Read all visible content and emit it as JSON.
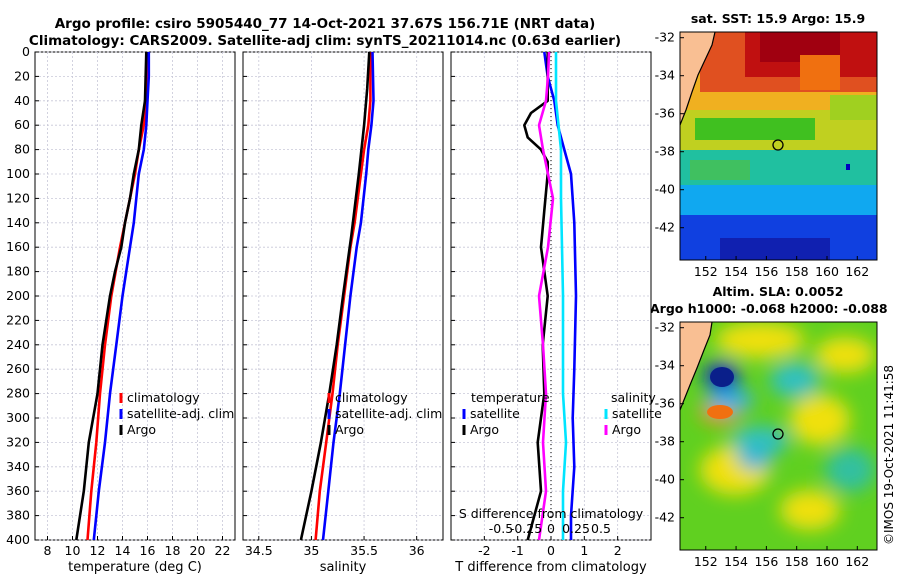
{
  "header": {
    "title_line1": "Argo profile: csiro 5905440_77 14-Oct-2021 37.67S 156.71E (NRT data)",
    "title_line2": "Climatology: CARS2009. Satellite-adj clim: synTS_20211014.nc (0.63d earlier)"
  },
  "copyright": "©IMOS 19-Oct-2021 11:41:58",
  "colors": {
    "climatology": "#ff0000",
    "satellite": "#0000ff",
    "argo": "#000000",
    "salinity_sat": "#00e5ff",
    "salinity_argo": "#ff00ff",
    "land": "#f9bf93"
  },
  "chart_data": [
    {
      "type": "line",
      "name": "temperature-profile",
      "xlabel": "temperature (deg C)",
      "ylabel": "",
      "xlim": [
        7,
        23
      ],
      "ylim": [
        400,
        0
      ],
      "xticks": [
        "8",
        "10",
        "12",
        "14",
        "16",
        "18",
        "20",
        "22"
      ],
      "xtick_values": [
        8,
        10,
        12,
        14,
        16,
        18,
        20,
        22
      ],
      "yticks": [
        "0",
        "20",
        "40",
        "60",
        "80",
        "100",
        "120",
        "140",
        "160",
        "180",
        "200",
        "220",
        "240",
        "260",
        "280",
        "300",
        "320",
        "340",
        "360",
        "380",
        "400"
      ],
      "ytick_values": [
        0,
        20,
        40,
        60,
        80,
        100,
        120,
        140,
        160,
        180,
        200,
        220,
        240,
        260,
        280,
        300,
        320,
        340,
        360,
        380,
        400
      ],
      "legend": {
        "labels": [
          "climatology",
          "satellite-adj. clim",
          "Argo"
        ],
        "position": "lower-right"
      },
      "series": [
        {
          "name": "climatology",
          "color": "#ff0000",
          "depth": [
            0,
            40,
            60,
            80,
            100,
            140,
            160,
            200,
            240,
            280,
            320,
            360,
            400
          ],
          "values": [
            15.9,
            15.9,
            15.7,
            15.3,
            15.0,
            14.2,
            13.8,
            13.1,
            12.6,
            12.2,
            11.9,
            11.5,
            11.2
          ]
        },
        {
          "name": "satellite-adj. clim",
          "color": "#0000ff",
          "depth": [
            0,
            20,
            40,
            60,
            80,
            100,
            140,
            160,
            200,
            240,
            280,
            320,
            360,
            400
          ],
          "values": [
            16.1,
            16.1,
            16.0,
            15.9,
            15.7,
            15.3,
            14.9,
            14.6,
            14.0,
            13.5,
            13.0,
            12.6,
            12.1,
            11.7
          ]
        },
        {
          "name": "Argo",
          "color": "#000000",
          "depth": [
            0,
            40,
            60,
            80,
            100,
            120,
            140,
            160,
            180,
            200,
            240,
            280,
            320,
            360,
            400
          ],
          "values": [
            15.9,
            15.8,
            15.5,
            15.3,
            14.9,
            14.6,
            14.2,
            13.9,
            13.4,
            13.0,
            12.4,
            12.0,
            11.3,
            10.9,
            10.3
          ]
        }
      ]
    },
    {
      "type": "line",
      "name": "salinity-profile",
      "xlabel": "salinity",
      "xlim": [
        34.35,
        36.25
      ],
      "ylim": [
        400,
        0
      ],
      "xticks": [
        "34.5",
        "35",
        "35.5",
        "36"
      ],
      "xtick_values": [
        34.5,
        35,
        35.5,
        36
      ],
      "legend": {
        "labels": [
          "climatology",
          "satellite-adj. clim",
          "Argo"
        ],
        "position": "lower-right"
      },
      "series": [
        {
          "name": "climatology",
          "color": "#ff0000",
          "depth": [
            0,
            40,
            60,
            80,
            100,
            140,
            160,
            200,
            240,
            280,
            320,
            360,
            400
          ],
          "values": [
            35.56,
            35.56,
            35.54,
            35.5,
            35.47,
            35.41,
            35.37,
            35.31,
            35.25,
            35.2,
            35.14,
            35.08,
            35.04
          ]
        },
        {
          "name": "satellite-adj. clim",
          "color": "#0000ff",
          "depth": [
            0,
            40,
            60,
            80,
            100,
            140,
            160,
            200,
            240,
            280,
            320,
            360,
            400
          ],
          "values": [
            35.58,
            35.59,
            35.57,
            35.54,
            35.52,
            35.47,
            35.43,
            35.37,
            35.32,
            35.27,
            35.21,
            35.16,
            35.11
          ]
        },
        {
          "name": "Argo",
          "color": "#000000",
          "depth": [
            0,
            30,
            60,
            100,
            150,
            200,
            240,
            280,
            320,
            360,
            400
          ],
          "values": [
            35.55,
            35.53,
            35.5,
            35.45,
            35.38,
            35.3,
            35.24,
            35.17,
            35.09,
            35.0,
            34.9
          ]
        }
      ]
    },
    {
      "type": "line",
      "name": "difference-profile",
      "xlabel": "T difference from climatology",
      "top_xlabel": "S difference from climatology",
      "xlim": [
        -3,
        3
      ],
      "ylim": [
        400,
        0
      ],
      "xticks": [
        "-2",
        "-1",
        "0",
        "1",
        "2"
      ],
      "xtick_values": [
        -2,
        -1,
        0,
        1,
        2
      ],
      "top_xticks": [
        "-0.5",
        "-0.25",
        "0",
        "0.25",
        "0.5"
      ],
      "top_xtick_values": [
        -0.5,
        -0.25,
        0,
        0.25,
        0.5
      ],
      "legend": {
        "temperature_title": "temperature",
        "salinity_title": "salinity",
        "labels": [
          "satellite",
          "Argo",
          "satellite",
          "Argo"
        ]
      },
      "series": [
        {
          "name": "temperature satellite",
          "color": "#0000ff",
          "depth": [
            0,
            20,
            40,
            60,
            80,
            100,
            140,
            200,
            260,
            300,
            340,
            380,
            400
          ],
          "values": [
            -0.2,
            -0.1,
            0.1,
            0.2,
            0.4,
            0.6,
            0.7,
            0.75,
            0.7,
            0.65,
            0.7,
            0.6,
            0.6
          ]
        },
        {
          "name": "temperature Argo",
          "color": "#000000",
          "depth": [
            0,
            20,
            40,
            50,
            60,
            70,
            80,
            90,
            100,
            130,
            160,
            200,
            240,
            280,
            320,
            360,
            400
          ],
          "values": [
            -0.1,
            -0.1,
            -0.1,
            -0.6,
            -0.8,
            -0.7,
            -0.3,
            -0.1,
            -0.1,
            -0.2,
            -0.3,
            -0.1,
            -0.25,
            -0.2,
            -0.4,
            -0.3,
            -0.7
          ]
        },
        {
          "name": "salinity satellite",
          "color": "#00e5ff",
          "depth": [
            0,
            40,
            80,
            120,
            200,
            280,
            320,
            360,
            400
          ],
          "values": [
            0.05,
            0.05,
            0.1,
            0.1,
            0.12,
            0.12,
            0.15,
            0.12,
            0.12
          ]
        },
        {
          "name": "salinity Argo",
          "color": "#ff00ff",
          "depth": [
            0,
            20,
            40,
            60,
            80,
            120,
            160,
            200,
            240,
            280,
            320,
            360,
            400
          ],
          "values": [
            -0.02,
            -0.03,
            -0.05,
            -0.12,
            -0.08,
            0.02,
            -0.03,
            -0.12,
            -0.08,
            -0.05,
            -0.08,
            -0.05,
            -0.12
          ]
        }
      ]
    },
    {
      "type": "heatmap",
      "name": "sst-map",
      "title": "sat. SST: 15.9 Argo: 15.9",
      "xticks": [
        "152",
        "154",
        "156",
        "158",
        "160",
        "162"
      ],
      "xtick_values": [
        152,
        154,
        156,
        158,
        160,
        162
      ],
      "yticks": [
        "-32",
        "-34",
        "-36",
        "-38",
        "-40",
        "-42"
      ],
      "ytick_values": [
        -32,
        -34,
        -36,
        -38,
        -40,
        -42
      ],
      "xlim": [
        150.3,
        163.3
      ],
      "ylim": [
        -43.7,
        -31.7
      ],
      "argo_position": {
        "lon": 156.71,
        "lat": -37.67
      }
    },
    {
      "type": "heatmap",
      "name": "sla-map",
      "title_line1": "Altim. SLA: 0.0052",
      "title_line2": "Argo h1000: -0.068 h2000: -0.088",
      "xticks": [
        "152",
        "154",
        "156",
        "158",
        "160",
        "162"
      ],
      "xtick_values": [
        152,
        154,
        156,
        158,
        160,
        162
      ],
      "yticks": [
        "-32",
        "-34",
        "-36",
        "-38",
        "-40",
        "-42"
      ],
      "ytick_values": [
        -32,
        -34,
        -36,
        -38,
        -40,
        -42
      ],
      "xlim": [
        150.3,
        163.3
      ],
      "ylim": [
        -43.7,
        -31.7
      ],
      "argo_position": {
        "lon": 156.71,
        "lat": -37.67
      }
    }
  ]
}
